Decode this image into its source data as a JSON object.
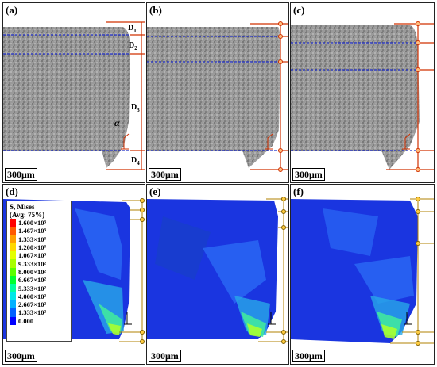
{
  "panels": [
    {
      "label": "(a)",
      "type": "micrograph",
      "scale": "300μm",
      "d_labels": [
        "D1",
        "D2",
        "D3",
        "D4"
      ],
      "alpha": "α"
    },
    {
      "label": "(b)",
      "type": "micrograph",
      "scale": "300μm"
    },
    {
      "label": "(c)",
      "type": "micrograph",
      "scale": "300μm"
    },
    {
      "label": "(d)",
      "type": "fem",
      "scale": "300μm"
    },
    {
      "label": "(e)",
      "type": "fem",
      "scale": "300μm"
    },
    {
      "label": "(f)",
      "type": "fem",
      "scale": "300μm"
    }
  ],
  "legend": {
    "title_line1": "S, Mises",
    "title_line2": "(Avg: 75%)",
    "values": [
      "1.600×10³",
      "1.467×10³",
      "1.333×10³",
      "1.200×10³",
      "1.067×10³",
      "9.333×10²",
      "8.000×10²",
      "6.667×10²",
      "5.333×10²",
      "4.000×10²",
      "2.667×10²",
      "1.333×10²",
      "0.000"
    ],
    "colors": [
      "#ff0000",
      "#ff5a00",
      "#ffa000",
      "#ffd800",
      "#e4ff00",
      "#a8ff00",
      "#5aff00",
      "#00ff30",
      "#00ffa0",
      "#00e8e8",
      "#00b0ff",
      "#0060ff",
      "#0000ff"
    ]
  },
  "colors": {
    "annotation": "#d03000",
    "dashed": "#1e2cc8",
    "fem_bg": "#1a35e0",
    "frame": "#222222"
  }
}
